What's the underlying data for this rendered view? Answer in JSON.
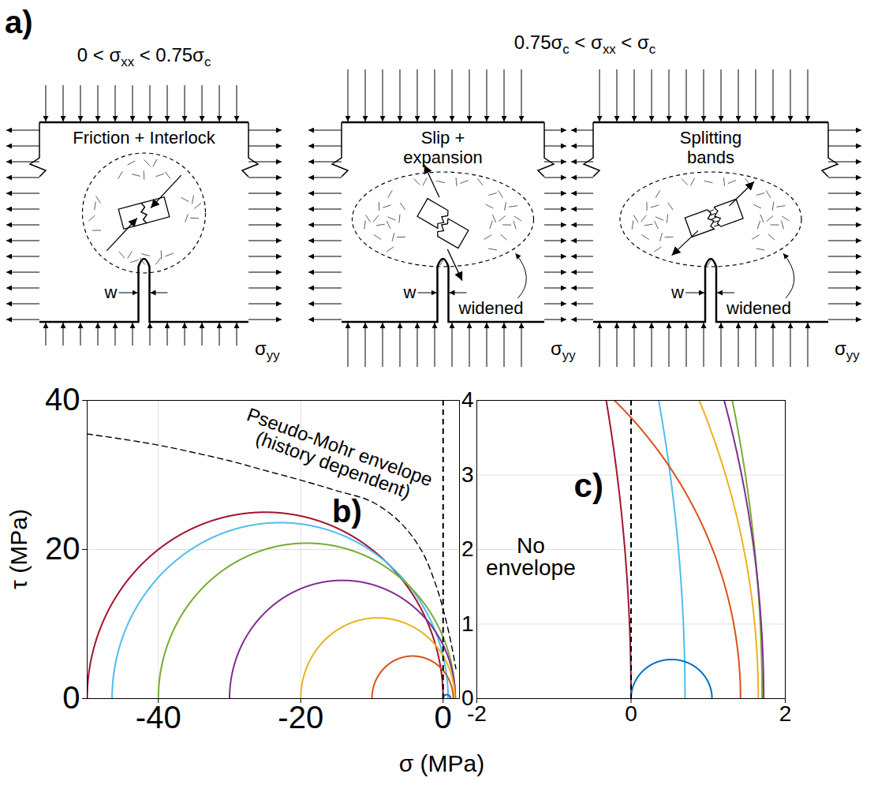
{
  "diagram": {
    "label": "a)",
    "groups": [
      {
        "condition": "0 < σxx < 0.75σc",
        "panels": [
          {
            "mechanism": [
              "Friction + Interlock"
            ],
            "crack_width": "w",
            "stress": "σyy"
          }
        ]
      },
      {
        "condition": "0.75σc < σxx < σc",
        "panels": [
          {
            "mechanism": [
              "Slip +",
              "expansion"
            ],
            "crack_width": "w",
            "zone": "widened",
            "stress": "σyy"
          },
          {
            "mechanism": [
              "Splitting",
              "bands"
            ],
            "crack_width": "w",
            "zone": "widened",
            "stress": "σyy"
          }
        ]
      }
    ]
  },
  "xlabel": "σ (MPa)",
  "chart_data": [
    {
      "type": "mohr",
      "panel_label": "b)",
      "ylabel": "τ (MPa)",
      "xlim": [
        -50,
        2.3
      ],
      "xticks": [
        -40,
        -20,
        0
      ],
      "ylim": [
        0,
        40
      ],
      "yticks": [
        0,
        20,
        40
      ],
      "grid": true,
      "circles": [
        {
          "color": "#A2142F",
          "sigma_min": -50,
          "sigma_max": 0
        },
        {
          "color": "#4DBEEE",
          "sigma_min": -46.5,
          "sigma_max": 0.7
        },
        {
          "color": "#77AC30",
          "sigma_min": -40,
          "sigma_max": 1.7
        },
        {
          "color": "#7E2F8E",
          "sigma_min": -30,
          "sigma_max": 1.72
        },
        {
          "color": "#EDB120",
          "sigma_min": -20,
          "sigma_max": 1.65
        },
        {
          "color": "#D95319",
          "sigma_min": -10,
          "sigma_max": 1.42
        },
        {
          "color": "#0072BD",
          "sigma_min": 0,
          "sigma_max": 1.05
        }
      ],
      "envelope": {
        "x": [
          -50,
          -45,
          -40,
          -35,
          -30,
          -25,
          -20,
          -15,
          -10,
          -6,
          -3,
          -1,
          0,
          1,
          1.8
        ],
        "y": [
          35.5,
          34.8,
          34.0,
          33.0,
          31.9,
          30.6,
          29.3,
          27.9,
          26.4,
          23.6,
          19.8,
          15.2,
          12.0,
          8.0,
          4.0
        ],
        "line_style": "dashed",
        "color": "#000000"
      },
      "reference_line": {
        "x": 0,
        "line_style": "dashed",
        "color": "#000000"
      },
      "annotation": [
        "Pseudo-Mohr envelope",
        "(history dependent)"
      ]
    },
    {
      "type": "mohr",
      "panel_label": "c)",
      "xlim": [
        -2,
        2
      ],
      "xticks": [
        -2,
        0,
        2
      ],
      "ylim": [
        0,
        4
      ],
      "yticks": [
        0,
        1,
        2,
        3,
        4
      ],
      "grid": true,
      "circles": [
        {
          "color": "#A2142F",
          "sigma_min": -50,
          "sigma_max": 0
        },
        {
          "color": "#4DBEEE",
          "sigma_min": -46.5,
          "sigma_max": 0.7
        },
        {
          "color": "#77AC30",
          "sigma_min": -40,
          "sigma_max": 1.7
        },
        {
          "color": "#7E2F8E",
          "sigma_min": -30,
          "sigma_max": 1.72
        },
        {
          "color": "#EDB120",
          "sigma_min": -20,
          "sigma_max": 1.65
        },
        {
          "color": "#D95319",
          "sigma_min": -10,
          "sigma_max": 1.42
        },
        {
          "color": "#0072BD",
          "sigma_min": 0,
          "sigma_max": 1.05
        }
      ],
      "reference_line": {
        "x": 0,
        "line_style": "dashed",
        "color": "#000000"
      },
      "annotation": [
        "No",
        "envelope"
      ]
    }
  ]
}
